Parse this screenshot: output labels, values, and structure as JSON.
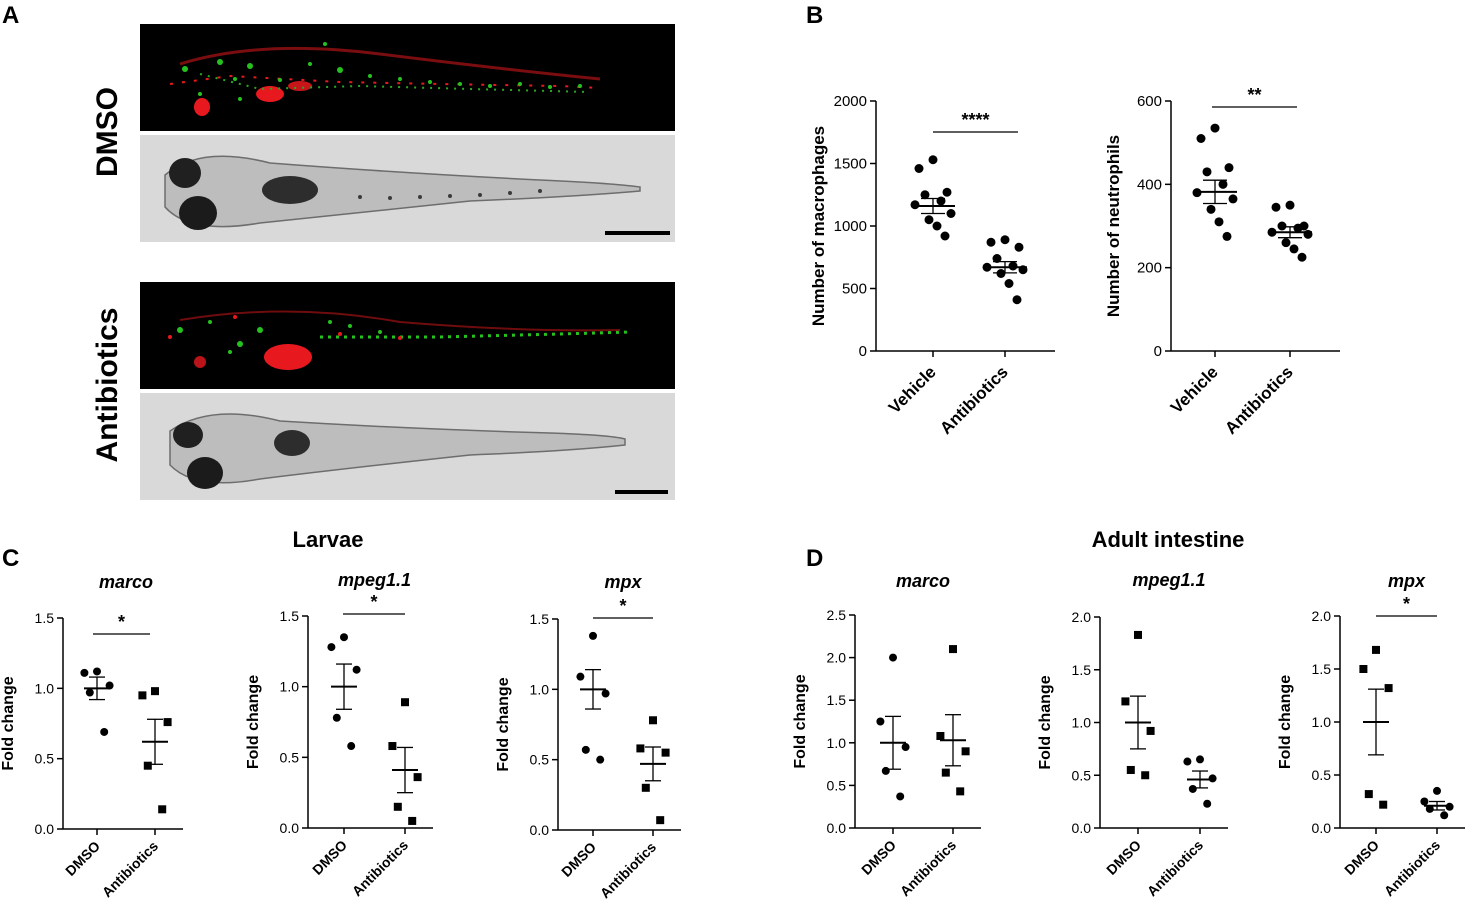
{
  "panels": {
    "A": "A",
    "B": "B",
    "C": "C",
    "D": "D"
  },
  "panel_a": {
    "row_labels": [
      "DMSO",
      "Antibiotics"
    ]
  },
  "group_titles": {
    "larvae": "Larvae",
    "adult": "Adult intestine"
  },
  "colors": {
    "fluorescence_red": "#e8191e",
    "fluorescence_green": "#25c21f",
    "brightfield_bg": "#d9d9d9",
    "marker": "#000000"
  },
  "chart_data": [
    {
      "id": "B-macrophages",
      "type": "scatter",
      "ylabel": "Number of macrophages",
      "categories": [
        "Vehicle",
        "Antibiotics"
      ],
      "ylim": [
        0,
        2000
      ],
      "yticks": [
        0,
        500,
        1000,
        1500,
        2000
      ],
      "significance": "****",
      "series": [
        {
          "values": [
            1530,
            1460,
            1270,
            1250,
            1200,
            1170,
            1100,
            1050,
            1000,
            920
          ],
          "mean": 1160,
          "sem": 60
        },
        {
          "values": [
            890,
            870,
            830,
            740,
            680,
            670,
            650,
            620,
            540,
            410
          ],
          "mean": 670,
          "sem": 45
        }
      ]
    },
    {
      "id": "B-neutrophils",
      "type": "scatter",
      "ylabel": "Number of neutrophils",
      "categories": [
        "Vehicle",
        "Antibiotics"
      ],
      "ylim": [
        0,
        600
      ],
      "yticks": [
        0,
        200,
        400,
        600
      ],
      "significance": "**",
      "series": [
        {
          "values": [
            535,
            510,
            440,
            430,
            400,
            380,
            365,
            340,
            310,
            275
          ],
          "mean": 382,
          "sem": 28
        },
        {
          "values": [
            350,
            345,
            300,
            300,
            295,
            285,
            280,
            260,
            245,
            225
          ],
          "mean": 285,
          "sem": 13
        }
      ]
    },
    {
      "id": "C-marco",
      "type": "scatter",
      "title": "marco",
      "ylabel": "Fold change",
      "categories": [
        "DMSO",
        "Antibiotics"
      ],
      "ylim": [
        0,
        1.5
      ],
      "yticks": [
        "0.0",
        "0.5",
        "1.0",
        "1.5"
      ],
      "significance": "*",
      "series": [
        {
          "values": [
            1.12,
            1.11,
            1.02,
            0.97,
            0.69
          ],
          "mean": 1.0,
          "sem": 0.08,
          "marker": "circle"
        },
        {
          "values": [
            0.98,
            0.95,
            0.76,
            0.45,
            0.14
          ],
          "mean": 0.62,
          "sem": 0.16,
          "marker": "square"
        }
      ]
    },
    {
      "id": "C-mpeg1.1",
      "type": "scatter",
      "title": "mpeg1.1",
      "ylabel": "Fold change",
      "categories": [
        "DMSO",
        "Antibiotics"
      ],
      "ylim": [
        0,
        1.5
      ],
      "yticks": [
        "0.0",
        "0.5",
        "1.0",
        "1.5"
      ],
      "significance": "*",
      "series": [
        {
          "values": [
            1.35,
            1.28,
            1.12,
            0.78,
            0.58
          ],
          "mean": 1.0,
          "sem": 0.16,
          "marker": "circle"
        },
        {
          "values": [
            0.89,
            0.58,
            0.36,
            0.15,
            0.05
          ],
          "mean": 0.41,
          "sem": 0.16,
          "marker": "square"
        }
      ]
    },
    {
      "id": "C-mpx",
      "type": "scatter",
      "title": "mpx",
      "ylabel": "Fold change",
      "categories": [
        "DMSO",
        "Antibiotics"
      ],
      "ylim": [
        0,
        1.5
      ],
      "yticks": [
        "0.0",
        "0.5",
        "1.0",
        "1.5"
      ],
      "significance": "*",
      "series": [
        {
          "values": [
            1.38,
            1.09,
            0.97,
            0.57,
            0.5
          ],
          "mean": 1.0,
          "sem": 0.14,
          "marker": "circle"
        },
        {
          "values": [
            0.78,
            0.58,
            0.55,
            0.3,
            0.07
          ],
          "mean": 0.47,
          "sem": 0.12,
          "marker": "square"
        }
      ]
    },
    {
      "id": "D-marco",
      "type": "scatter",
      "title": "marco",
      "ylabel": "Fold change",
      "categories": [
        "DMSO",
        "Antibiotics"
      ],
      "ylim": [
        0,
        2.5
      ],
      "yticks": [
        "0.0",
        "0.5",
        "1.0",
        "1.5",
        "2.0",
        "2.5"
      ],
      "significance": "",
      "series": [
        {
          "values": [
            2.0,
            1.25,
            0.95,
            0.67,
            0.37
          ],
          "mean": 1.0,
          "sem": 0.31,
          "marker": "circle"
        },
        {
          "values": [
            2.1,
            1.08,
            0.9,
            0.65,
            0.43
          ],
          "mean": 1.03,
          "sem": 0.3,
          "marker": "square"
        }
      ]
    },
    {
      "id": "D-mpeg1.1",
      "type": "scatter",
      "title": "mpeg1.1",
      "ylabel": "Fold change",
      "categories": [
        "DMSO",
        "Antibiotics"
      ],
      "ylim": [
        0,
        2.0
      ],
      "yticks": [
        "0.0",
        "0.5",
        "1.0",
        "1.5",
        "2.0"
      ],
      "significance": "",
      "series": [
        {
          "values": [
            1.83,
            1.2,
            0.92,
            0.55,
            0.5
          ],
          "mean": 1.0,
          "sem": 0.25,
          "marker": "square"
        },
        {
          "values": [
            0.65,
            0.63,
            0.47,
            0.37,
            0.23
          ],
          "mean": 0.46,
          "sem": 0.08,
          "marker": "circle"
        }
      ]
    },
    {
      "id": "D-mpx",
      "type": "scatter",
      "title": "mpx",
      "ylabel": "Fold change",
      "categories": [
        "DMSO",
        "Antibiotics"
      ],
      "ylim": [
        0,
        2.0
      ],
      "yticks": [
        "0.0",
        "0.5",
        "1.0",
        "1.5",
        "2.0"
      ],
      "significance": "*",
      "series": [
        {
          "values": [
            1.68,
            1.5,
            1.32,
            0.32,
            0.22
          ],
          "mean": 1.0,
          "sem": 0.31,
          "marker": "square"
        },
        {
          "values": [
            0.35,
            0.25,
            0.2,
            0.18,
            0.12
          ],
          "mean": 0.21,
          "sem": 0.04,
          "marker": "circle"
        }
      ]
    }
  ]
}
